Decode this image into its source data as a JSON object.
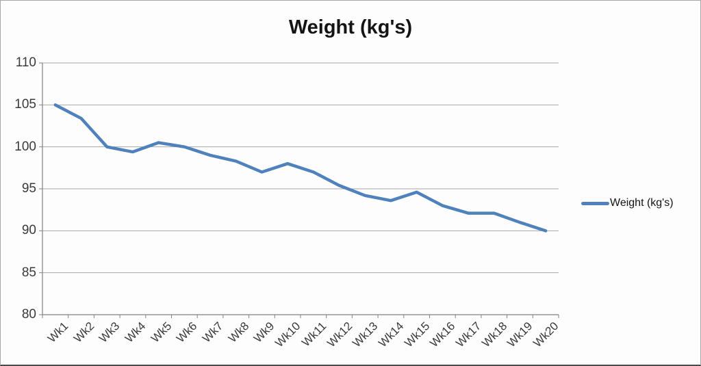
{
  "chart": {
    "colors": {
      "series": "#4F81BD",
      "gridline": "#A6A6A6",
      "axis": "#808080",
      "tick_text": "#3A3A3A",
      "title_text": "#141414"
    }
  },
  "chart_data": {
    "type": "line",
    "title": "Weight (kg's)",
    "categories": [
      "Wk1",
      "Wk2",
      "Wk3",
      "Wk4",
      "Wk5",
      "Wk6",
      "Wk7",
      "Wk8",
      "Wk9",
      "Wk10",
      "Wk11",
      "Wk12",
      "Wk13",
      "Wk14",
      "Wk15",
      "Wk16",
      "Wk17",
      "Wk18",
      "Wk19",
      "Wk20"
    ],
    "values": [
      105,
      103.4,
      100,
      99.4,
      100.5,
      100,
      99,
      98.3,
      97,
      98,
      97,
      95.4,
      94.2,
      93.6,
      94.6,
      93,
      92.1,
      92.1,
      91,
      90
    ],
    "xlabel": "",
    "ylabel": "",
    "ylim": [
      80,
      110
    ],
    "yticks": [
      80,
      85,
      90,
      95,
      100,
      105,
      110
    ],
    "grid": "horizontal",
    "legend": [
      "Weight (kg's)"
    ],
    "legend_position": "right",
    "series_color": "#4F81BD"
  }
}
